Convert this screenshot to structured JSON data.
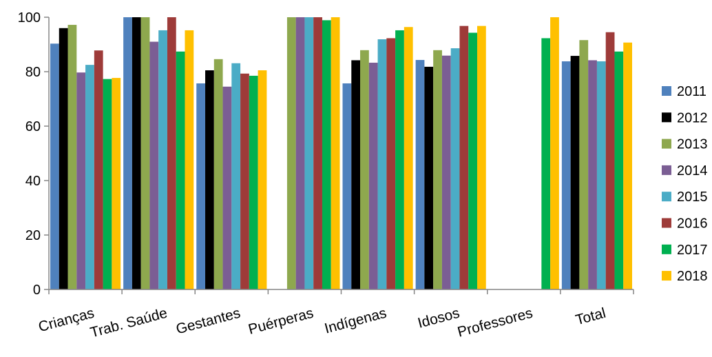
{
  "chart_data": {
    "type": "bar",
    "title": "",
    "xlabel": "",
    "ylabel": "",
    "ylim": [
      0,
      100
    ],
    "yticks": [
      0,
      20,
      40,
      60,
      80,
      100
    ],
    "grid": false,
    "legend_position": "right",
    "categories": [
      "Crianças",
      "Trab. Saúde",
      "Gestantes",
      "Puérperas",
      "Indígenas",
      "Idosos",
      "Professores",
      "Total"
    ],
    "series": [
      {
        "name": "2011",
        "color": "#4F81BD",
        "values": [
          90.3,
          100,
          75.7,
          null,
          75.7,
          84.3,
          null,
          83.8
        ]
      },
      {
        "name": "2012",
        "color": "#000000",
        "values": [
          96.0,
          100,
          80.5,
          null,
          84.2,
          81.8,
          null,
          85.8
        ]
      },
      {
        "name": "2013",
        "color": "#8EA84E",
        "values": [
          97.2,
          100,
          84.6,
          100,
          87.9,
          87.9,
          null,
          91.6
        ]
      },
      {
        "name": "2014",
        "color": "#7B5E94",
        "values": [
          79.7,
          91.0,
          74.5,
          100,
          83.3,
          85.9,
          null,
          84.2
        ]
      },
      {
        "name": "2015",
        "color": "#4BACC6",
        "values": [
          82.5,
          95.2,
          83.1,
          100,
          91.9,
          88.6,
          null,
          83.8
        ]
      },
      {
        "name": "2016",
        "color": "#9E3B39",
        "values": [
          87.8,
          100,
          79.3,
          100,
          92.3,
          96.8,
          null,
          94.5
        ]
      },
      {
        "name": "2017",
        "color": "#00B050",
        "values": [
          77.3,
          87.4,
          78.5,
          98.9,
          95.2,
          94.3,
          92.3,
          87.4
        ]
      },
      {
        "name": "2018",
        "color": "#FFC000",
        "values": [
          77.7,
          95.2,
          80.5,
          100,
          96.4,
          96.8,
          100,
          90.7
        ]
      }
    ]
  }
}
